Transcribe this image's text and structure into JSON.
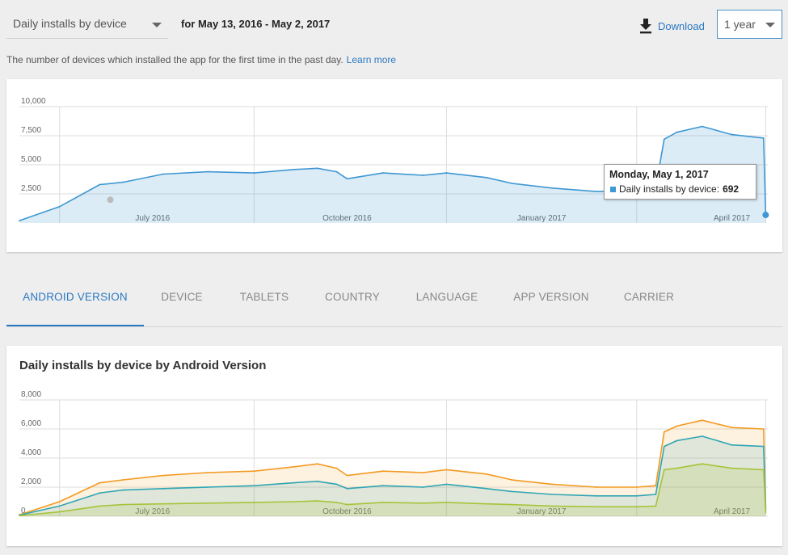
{
  "header": {
    "metric_select": "Daily installs by device",
    "date_range": "for May 13, 2016 - May 2, 2017",
    "download_label": "Download",
    "range_select": "1 year"
  },
  "description": {
    "text": "The number of devices which installed the app for the first time in the past day.",
    "link": "Learn more"
  },
  "tooltip": {
    "date": "Monday, May 1, 2017",
    "series": "Daily installs by device:",
    "value": "692"
  },
  "tabs": [
    {
      "label": "ANDROID VERSION",
      "active": true
    },
    {
      "label": "DEVICE",
      "active": false
    },
    {
      "label": "TABLETS",
      "active": false
    },
    {
      "label": "COUNTRY",
      "active": false
    },
    {
      "label": "LANGUAGE",
      "active": false
    },
    {
      "label": "APP VERSION",
      "active": false
    },
    {
      "label": "CARRIER",
      "active": false
    }
  ],
  "breakdown_title": "Daily installs by device by Android Version",
  "colors": {
    "accent": "#2a78c2",
    "series_blue": "#3f97d3",
    "series_orange": "#f39a22",
    "series_teal": "#2fa6b4",
    "series_green": "#a6c43a"
  },
  "chart_data": [
    {
      "type": "area",
      "title": "",
      "x_tick_labels": [
        "July 2016",
        "October 2016",
        "January 2017",
        "April 2017"
      ],
      "y_tick_labels": [
        "2,500",
        "5,000",
        "7,500",
        "10,000"
      ],
      "ylim": [
        0,
        10000
      ],
      "grid": true,
      "x": [
        "2016-05-13",
        "2016-06-01",
        "2016-06-20",
        "2016-07-01",
        "2016-07-20",
        "2016-08-10",
        "2016-09-01",
        "2016-09-20",
        "2016-10-01",
        "2016-10-10",
        "2016-10-15",
        "2016-11-01",
        "2016-11-20",
        "2016-12-01",
        "2016-12-20",
        "2017-01-01",
        "2017-01-20",
        "2017-02-10",
        "2017-03-01",
        "2017-03-10",
        "2017-03-14",
        "2017-03-20",
        "2017-04-01",
        "2017-04-15",
        "2017-04-30",
        "2017-05-01"
      ],
      "series": [
        {
          "name": "Daily installs by device",
          "values": [
            200,
            1400,
            3300,
            3500,
            4200,
            4400,
            4300,
            4600,
            4700,
            4400,
            3800,
            4300,
            4100,
            4300,
            3900,
            3400,
            3000,
            2700,
            2800,
            3100,
            7200,
            7800,
            8300,
            7600,
            7300,
            692
          ]
        }
      ]
    },
    {
      "type": "area",
      "title": "Daily installs by device by Android Version",
      "x_tick_labels": [
        "July 2016",
        "October 2016",
        "January 2017",
        "April 2017"
      ],
      "y_tick_labels": [
        "0",
        "2,000",
        "4,000",
        "6,000",
        "8,000"
      ],
      "ylim": [
        0,
        8000
      ],
      "grid": true,
      "x": [
        "2016-05-13",
        "2016-06-01",
        "2016-06-20",
        "2016-07-01",
        "2016-07-20",
        "2016-08-10",
        "2016-09-01",
        "2016-09-20",
        "2016-10-01",
        "2016-10-10",
        "2016-10-15",
        "2016-11-01",
        "2016-11-20",
        "2016-12-01",
        "2016-12-20",
        "2017-01-01",
        "2017-01-20",
        "2017-02-10",
        "2017-03-01",
        "2017-03-10",
        "2017-03-14",
        "2017-03-20",
        "2017-04-01",
        "2017-04-15",
        "2017-04-30",
        "2017-05-01"
      ],
      "series": [
        {
          "values": [
            100,
            1000,
            2300,
            2500,
            2800,
            3000,
            3100,
            3400,
            3600,
            3300,
            2800,
            3100,
            3000,
            3200,
            2900,
            2500,
            2200,
            2000,
            2000,
            2100,
            5800,
            6200,
            6600,
            6100,
            6000,
            500
          ]
        },
        {
          "values": [
            80,
            700,
            1600,
            1800,
            1900,
            2000,
            2100,
            2300,
            2400,
            2200,
            1900,
            2100,
            2000,
            2200,
            1900,
            1700,
            1500,
            1400,
            1400,
            1500,
            4800,
            5200,
            5500,
            4900,
            4800,
            400
          ]
        },
        {
          "values": [
            40,
            300,
            700,
            800,
            850,
            900,
            950,
            1000,
            1050,
            950,
            800,
            950,
            900,
            950,
            850,
            800,
            700,
            650,
            650,
            700,
            3200,
            3300,
            3600,
            3300,
            3200,
            250
          ]
        }
      ]
    }
  ]
}
